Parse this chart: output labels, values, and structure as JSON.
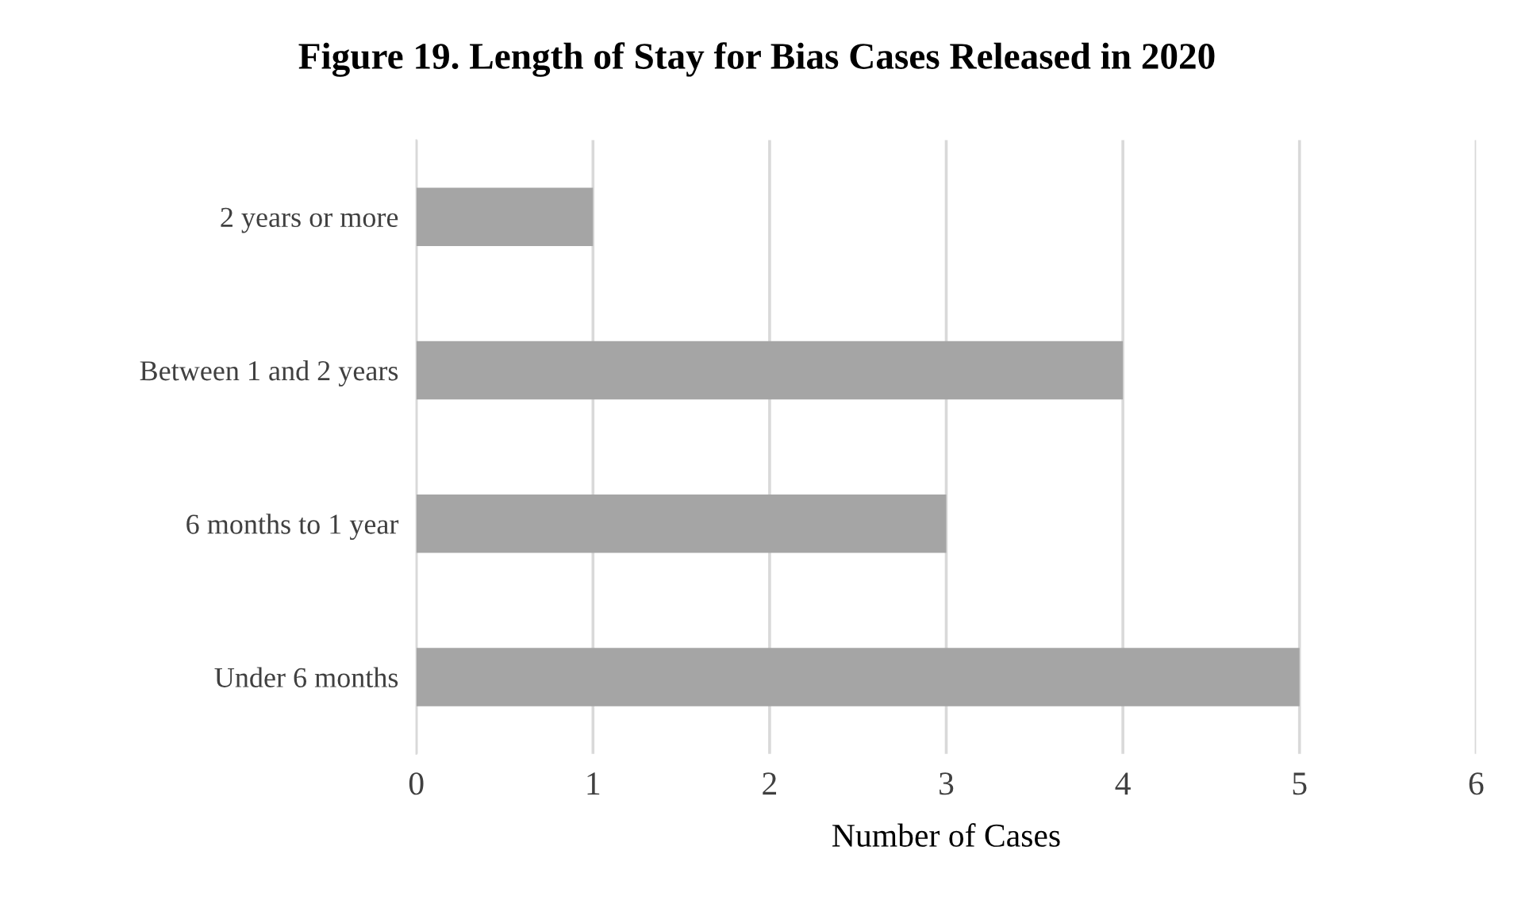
{
  "chart_data": {
    "type": "bar",
    "orientation": "horizontal",
    "title": "Figure 19. Length of Stay for Bias Cases Released in 2020",
    "xlabel": "Number of Cases",
    "categories": [
      "2 years or more",
      "Between 1 and 2 years",
      "6 months to 1 year",
      "Under 6 months"
    ],
    "values": [
      1,
      4,
      3,
      5
    ],
    "color": "#a5a5a5",
    "xlim": [
      0,
      6
    ],
    "xticks": [
      0,
      1,
      2,
      3,
      4,
      5,
      6
    ],
    "grid": "x",
    "legend": false
  }
}
